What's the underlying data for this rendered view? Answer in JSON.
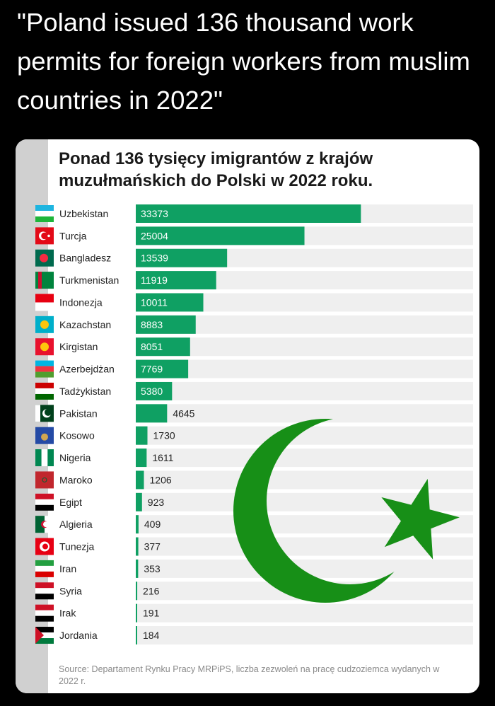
{
  "headline": "\"Poland issued 136 thousand work permits for foreign workers from muslim countries in 2022\"",
  "colors": {
    "bar": "#0fa063",
    "track": "#efefef",
    "symbol": "#178f17"
  },
  "chart_data": {
    "type": "bar",
    "orientation": "horizontal",
    "title": "Ponad 136 tysięcy imigrantów z krajów muzułmańskich do Polski w 2022 roku.",
    "source": "Source: Departament Rynku Pracy MRPiPS, liczba zezwoleń na pracę cudzoziemca wydanych w 2022 r.",
    "xlim": [
      0,
      50000
    ],
    "categories": [
      "Uzbekistan",
      "Turcja",
      "Bangladesz",
      "Turkmenistan",
      "Indonezja",
      "Kazachstan",
      "Kirgistan",
      "Azerbejdżan",
      "Tadżykistan",
      "Pakistan",
      "Kosowo",
      "Nigeria",
      "Maroko",
      "Egipt",
      "Algieria",
      "Tunezja",
      "Iran",
      "Syria",
      "Irak",
      "Jordania"
    ],
    "values": [
      33373,
      25004,
      13539,
      11919,
      10011,
      8883,
      8051,
      7769,
      5380,
      4645,
      1730,
      1611,
      1206,
      923,
      409,
      377,
      353,
      216,
      191,
      184
    ],
    "value_labels": [
      "33373",
      "25004",
      "13539",
      "11919",
      "10011",
      "8883",
      "8051",
      "7769",
      "5380",
      "4645",
      "1730",
      "1611",
      "1206",
      "923",
      "409",
      "377",
      "353",
      "216",
      "191",
      "184"
    ],
    "flags": [
      {
        "dir": "h",
        "stripes": [
          "#1eb5e0",
          "#ffffff",
          "#1eb53a"
        ]
      },
      {
        "dir": "h",
        "stripes": [
          "#e30a17"
        ],
        "mark": "crescent-white"
      },
      {
        "dir": "h",
        "stripes": [
          "#006a4e"
        ],
        "mark": "disc-red"
      },
      {
        "dir": "h",
        "stripes": [
          "#00843d"
        ],
        "mark": "band-red"
      },
      {
        "dir": "h",
        "stripes": [
          "#e70011",
          "#ffffff"
        ]
      },
      {
        "dir": "h",
        "stripes": [
          "#00afca"
        ],
        "mark": "sun-yellow"
      },
      {
        "dir": "h",
        "stripes": [
          "#e8112d"
        ],
        "mark": "sun-yellow"
      },
      {
        "dir": "h",
        "stripes": [
          "#00b5e2",
          "#ef3340",
          "#509e2f"
        ]
      },
      {
        "dir": "h",
        "stripes": [
          "#cc0000",
          "#ffffff",
          "#006600"
        ]
      },
      {
        "dir": "h",
        "stripes": [
          "#01411c"
        ],
        "mark": "pakistan"
      },
      {
        "dir": "h",
        "stripes": [
          "#244aa5"
        ],
        "mark": "kosovo"
      },
      {
        "dir": "v",
        "stripes": [
          "#008751",
          "#ffffff",
          "#008751"
        ]
      },
      {
        "dir": "h",
        "stripes": [
          "#c1272d"
        ],
        "mark": "star-green"
      },
      {
        "dir": "h",
        "stripes": [
          "#ce1126",
          "#ffffff",
          "#000000"
        ]
      },
      {
        "dir": "v",
        "stripes": [
          "#006233",
          "#ffffff"
        ],
        "mark": "crescent-red"
      },
      {
        "dir": "h",
        "stripes": [
          "#e70013"
        ],
        "mark": "disc-white"
      },
      {
        "dir": "h",
        "stripes": [
          "#239f40",
          "#ffffff",
          "#da0000"
        ]
      },
      {
        "dir": "h",
        "stripes": [
          "#ce1126",
          "#ffffff",
          "#000000"
        ]
      },
      {
        "dir": "h",
        "stripes": [
          "#ce1126",
          "#ffffff",
          "#000000"
        ]
      },
      {
        "dir": "h",
        "stripes": [
          "#000000",
          "#ffffff",
          "#007a3d"
        ],
        "mark": "triangle-red"
      }
    ]
  }
}
